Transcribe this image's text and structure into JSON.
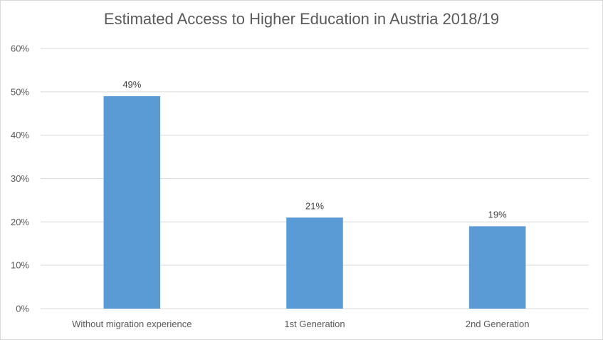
{
  "chart_data": {
    "type": "bar",
    "title": "Estimated Access to Higher Education in Austria 2018/19",
    "categories": [
      "Without migration experience",
      "1st Generation",
      "2nd Generation"
    ],
    "values": [
      49,
      21,
      19
    ],
    "data_labels": [
      "49%",
      "21%",
      "19%"
    ],
    "ylim": [
      0,
      60
    ],
    "y_ticks": [
      0,
      10,
      20,
      30,
      40,
      50,
      60
    ],
    "y_tick_labels": [
      "0%",
      "10%",
      "20%",
      "30%",
      "40%",
      "50%",
      "60%"
    ],
    "xlabel": "",
    "ylabel": "",
    "grid": true,
    "bar_color": "#5b9bd5",
    "grid_color": "#d9d9d9"
  }
}
